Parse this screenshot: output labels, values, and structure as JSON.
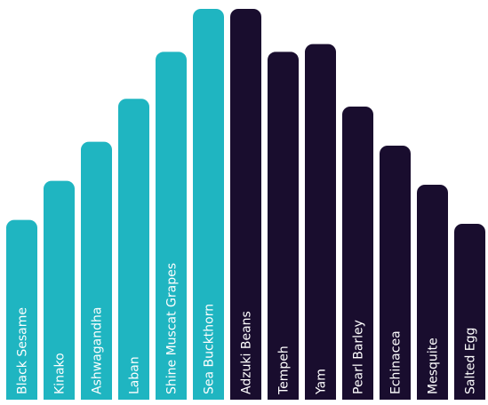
{
  "chart_data": {
    "type": "bar",
    "orientation": "vertical",
    "title": "",
    "xlabel": "",
    "ylabel": "",
    "ylim": [
      0,
      100
    ],
    "grid": false,
    "legend": "none",
    "categories": [
      "Black Sesame",
      "Kinako",
      "Ashwagandha",
      "Laban",
      "Shine Muscat Grapes",
      "Sea Buckthorn",
      "Adzuki Beans",
      "Tempeh",
      "Yam",
      "Pearl Barley",
      "Echinacea",
      "Mesquite",
      "Salted Egg"
    ],
    "values": [
      46,
      56,
      66,
      77,
      89,
      100,
      100,
      89,
      91,
      75,
      65,
      55,
      45
    ],
    "bar_groups": [
      0,
      0,
      0,
      0,
      0,
      0,
      1,
      1,
      1,
      1,
      1,
      1,
      1
    ],
    "colors": [
      "#1fb5c1",
      "#190d2e"
    ]
  }
}
